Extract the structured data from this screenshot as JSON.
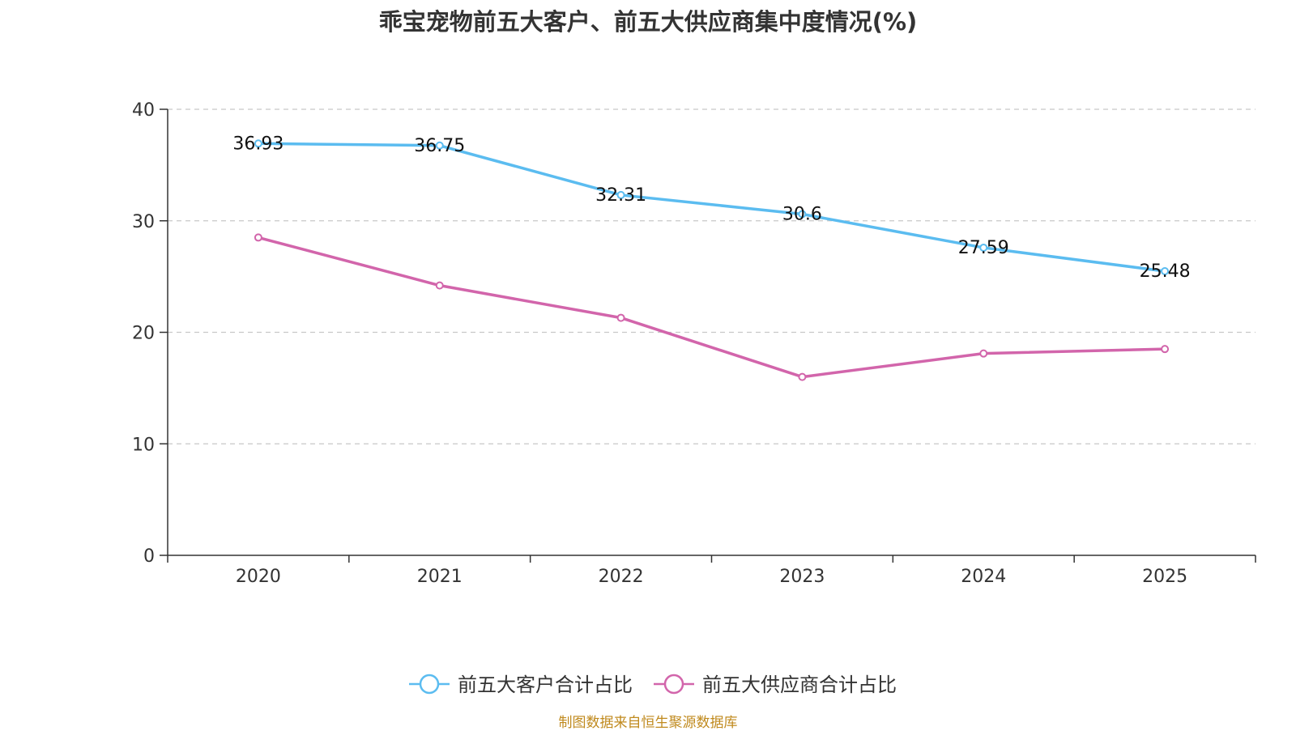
{
  "source_note": "制图数据来自恒生聚源数据库",
  "chart_data": {
    "type": "line",
    "title": "乖宝宠物前五大客户、前五大供应商集中度情况(%)",
    "categories": [
      "2020",
      "2021",
      "2022",
      "2023",
      "2024",
      "2025"
    ],
    "ylim": [
      0,
      40
    ],
    "yticks": [
      0,
      10,
      20,
      30,
      40
    ],
    "grid": true,
    "legend_position": "bottom-center",
    "series": [
      {
        "name": "前五大客户合计占比",
        "color": "#5bbcf0",
        "values": [
          36.93,
          36.75,
          32.31,
          30.6,
          27.59,
          25.48
        ],
        "show_labels": true,
        "labels": [
          "36.93",
          "36.75",
          "32.31",
          "30.6",
          "27.59",
          "25.48"
        ]
      },
      {
        "name": "前五大供应商合计占比",
        "color": "#d265ab",
        "values": [
          28.5,
          24.2,
          21.3,
          16.0,
          18.1,
          18.5
        ],
        "show_labels": false
      }
    ]
  }
}
